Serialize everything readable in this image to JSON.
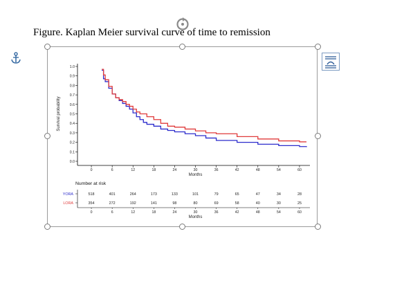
{
  "document": {
    "caption": "Figure. Kaplan Meier survival curve of time to remission"
  },
  "icons": {
    "anchor": "anchor-icon",
    "rotate": "rotate-handle-icon",
    "layout_options": "layout-options-icon"
  },
  "chart_data": {
    "type": "line",
    "title": "",
    "xlabel": "Months",
    "ylabel": "Survival probability",
    "xlim": [
      -4,
      63
    ],
    "ylim": [
      0,
      1.0
    ],
    "x_ticks": [
      0,
      6,
      12,
      18,
      24,
      30,
      36,
      42,
      48,
      54,
      60
    ],
    "y_ticks": [
      "0.0",
      "0.1",
      "0.2",
      "0.3",
      "0.4",
      "0.5",
      "0.6",
      "0.7",
      "0.8",
      "0.9",
      "1.0"
    ],
    "grid": false,
    "series": [
      {
        "name": "YORA",
        "color": "#2b2bcc",
        "x": [
          3,
          3.5,
          4,
          5,
          6,
          7,
          8,
          9,
          10,
          11,
          12,
          13,
          14,
          15,
          16,
          18,
          20,
          22,
          24,
          27,
          30,
          33,
          36,
          42,
          48,
          54,
          60,
          62
        ],
        "y": [
          0.96,
          0.87,
          0.84,
          0.77,
          0.71,
          0.67,
          0.64,
          0.61,
          0.58,
          0.55,
          0.51,
          0.47,
          0.44,
          0.41,
          0.39,
          0.37,
          0.34,
          0.325,
          0.31,
          0.29,
          0.27,
          0.245,
          0.22,
          0.2,
          0.18,
          0.165,
          0.155,
          0.15
        ]
      },
      {
        "name": "LORA",
        "color": "#e03a3a",
        "x": [
          3,
          3.5,
          4,
          5,
          6,
          7,
          8,
          9,
          10,
          11,
          12,
          13,
          14,
          16,
          18,
          20,
          22,
          24,
          27,
          30,
          33,
          36,
          42,
          48,
          54,
          60,
          62
        ],
        "y": [
          0.97,
          0.91,
          0.86,
          0.79,
          0.71,
          0.67,
          0.65,
          0.63,
          0.6,
          0.58,
          0.55,
          0.52,
          0.5,
          0.47,
          0.44,
          0.4,
          0.37,
          0.36,
          0.34,
          0.32,
          0.3,
          0.29,
          0.26,
          0.235,
          0.215,
          0.205,
          0.205
        ]
      }
    ],
    "risk_table": {
      "title": "Number at risk",
      "xlabel": "Months",
      "time_points": [
        0,
        6,
        12,
        18,
        24,
        30,
        36,
        42,
        48,
        54,
        60
      ],
      "rows": [
        {
          "name": "YORA",
          "color": "#2b2bcc",
          "values": [
            518,
            401,
            264,
            173,
            133,
            101,
            79,
            65,
            47,
            34,
            28
          ]
        },
        {
          "name": "LORA",
          "color": "#e03a3a",
          "values": [
            354,
            272,
            192,
            141,
            98,
            80,
            69,
            58,
            40,
            30,
            25
          ]
        }
      ]
    }
  }
}
